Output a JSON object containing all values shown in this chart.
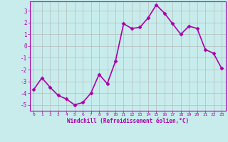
{
  "x": [
    0,
    1,
    2,
    3,
    4,
    5,
    6,
    7,
    8,
    9,
    10,
    11,
    12,
    13,
    14,
    15,
    16,
    17,
    18,
    19,
    20,
    21,
    22,
    23
  ],
  "y": [
    -3.7,
    -2.7,
    -3.5,
    -4.2,
    -4.5,
    -5.0,
    -4.8,
    -4.0,
    -2.4,
    -3.2,
    -1.3,
    1.9,
    1.5,
    1.6,
    2.4,
    3.5,
    2.8,
    1.9,
    1.0,
    1.7,
    1.5,
    -0.3,
    -0.6,
    -1.9
  ],
  "line_color": "#aa00aa",
  "marker": "D",
  "marker_size": 2.5,
  "bg_color": "#c8ecec",
  "grid_color": "#b0b0b0",
  "xlabel": "Windchill (Refroidissement éolien,°C)",
  "xlabel_color": "#aa00aa",
  "tick_color": "#aa00aa",
  "ylim": [
    -5.5,
    3.8
  ],
  "xlim": [
    -0.5,
    23.5
  ],
  "yticks": [
    -5,
    -4,
    -3,
    -2,
    -1,
    0,
    1,
    2,
    3
  ],
  "xticks": [
    0,
    1,
    2,
    3,
    4,
    5,
    6,
    7,
    8,
    9,
    10,
    11,
    12,
    13,
    14,
    15,
    16,
    17,
    18,
    19,
    20,
    21,
    22,
    23
  ],
  "spine_color": "#aa00aa",
  "linewidth": 1.2
}
